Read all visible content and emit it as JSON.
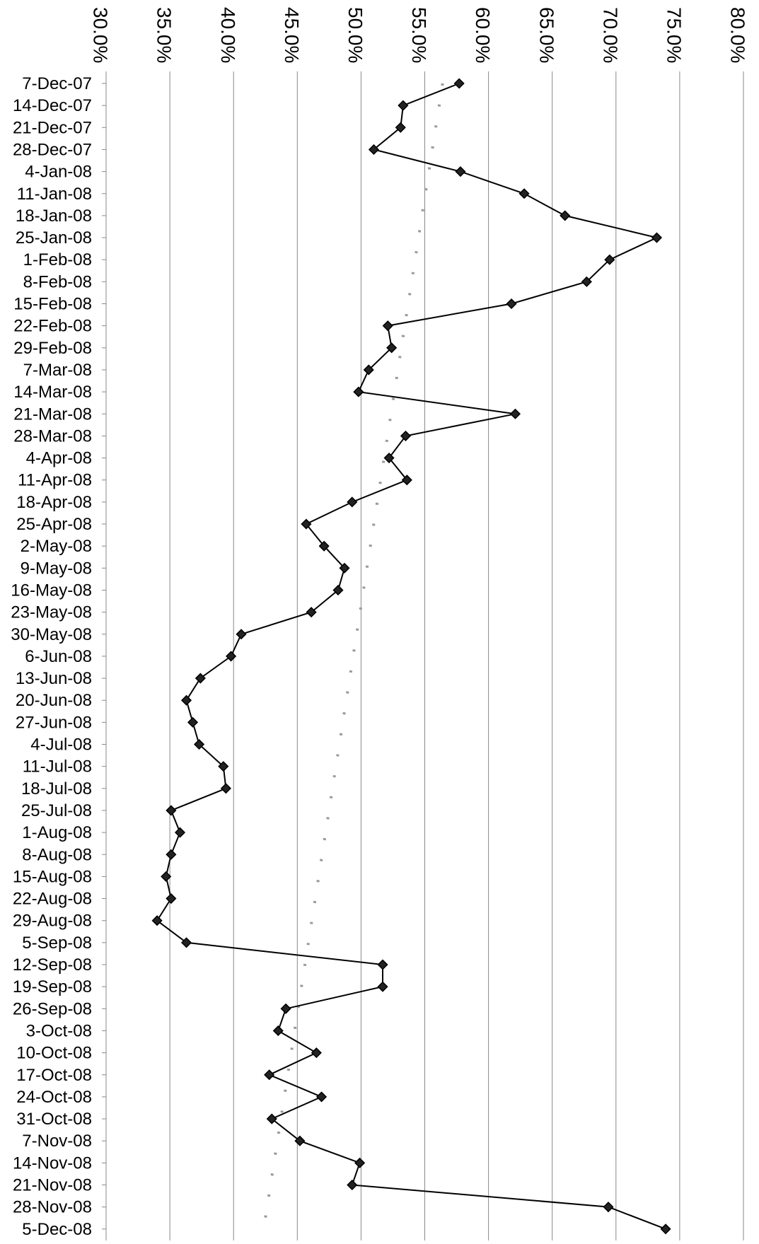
{
  "chart_data": {
    "type": "line",
    "orientation": "horizontal",
    "title": "",
    "xlabel": "",
    "ylabel": "",
    "xlim": [
      0.3,
      0.8
    ],
    "x_ticks": [
      "30.0%",
      "35.0%",
      "40.0%",
      "45.0%",
      "50.0%",
      "55.0%",
      "60.0%",
      "65.0%",
      "70.0%",
      "75.0%",
      "80.0%"
    ],
    "grid": true,
    "legend": "none",
    "categories": [
      "7-Dec-07",
      "14-Dec-07",
      "21-Dec-07",
      "28-Dec-07",
      "4-Jan-08",
      "11-Jan-08",
      "18-Jan-08",
      "25-Jan-08",
      "1-Feb-08",
      "8-Feb-08",
      "15-Feb-08",
      "22-Feb-08",
      "29-Feb-08",
      "7-Mar-08",
      "14-Mar-08",
      "21-Mar-08",
      "28-Mar-08",
      "4-Apr-08",
      "11-Apr-08",
      "18-Apr-08",
      "25-Apr-08",
      "2-May-08",
      "9-May-08",
      "16-May-08",
      "23-May-08",
      "30-May-08",
      "6-Jun-08",
      "13-Jun-08",
      "20-Jun-08",
      "27-Jun-08",
      "4-Jul-08",
      "11-Jul-08",
      "18-Jul-08",
      "25-Jul-08",
      "1-Aug-08",
      "8-Aug-08",
      "15-Aug-08",
      "22-Aug-08",
      "29-Aug-08",
      "5-Sep-08",
      "12-Sep-08",
      "19-Sep-08",
      "26-Sep-08",
      "3-Oct-08",
      "10-Oct-08",
      "17-Oct-08",
      "24-Oct-08",
      "31-Oct-08",
      "7-Nov-08",
      "14-Nov-08",
      "21-Nov-08",
      "28-Nov-08",
      "5-Dec-08"
    ],
    "series": [
      {
        "style": "solid-diamond",
        "color": "#000000",
        "values": [
          0.577,
          0.533,
          0.531,
          0.51,
          0.578,
          0.628,
          0.66,
          0.732,
          0.695,
          0.677,
          0.618,
          0.521,
          0.524,
          0.506,
          0.498,
          0.621,
          0.535,
          0.522,
          0.536,
          0.493,
          0.457,
          0.471,
          0.487,
          0.482,
          0.461,
          0.406,
          0.398,
          0.374,
          0.363,
          0.368,
          0.373,
          0.392,
          0.394,
          0.351,
          0.358,
          0.351,
          0.347,
          0.351,
          0.34,
          0.363,
          0.517,
          0.517,
          0.441,
          0.435,
          0.465,
          0.428,
          0.469,
          0.43,
          0.452,
          0.499,
          0.493,
          0.694,
          0.739
        ]
      },
      {
        "style": "dotted-trend",
        "color": "#9a9a9a",
        "values": [
          0.564,
          0.5613,
          0.5586,
          0.5559,
          0.5532,
          0.5505,
          0.5478,
          0.5451,
          0.5424,
          0.5397,
          0.537,
          0.5343,
          0.5316,
          0.5289,
          0.5262,
          0.5235,
          0.5208,
          0.5181,
          0.5154,
          0.5127,
          0.51,
          0.5073,
          0.5046,
          0.5019,
          0.4992,
          0.4965,
          0.4938,
          0.4911,
          0.4884,
          0.4857,
          0.483,
          0.4803,
          0.4776,
          0.4749,
          0.4722,
          0.4695,
          0.4668,
          0.4641,
          0.4614,
          0.4587,
          0.456,
          0.4533,
          0.4506,
          0.4479,
          0.4452,
          0.4425,
          0.4398,
          0.4371,
          0.4344,
          0.4317,
          0.429,
          0.4263,
          0.4236
        ]
      }
    ]
  }
}
